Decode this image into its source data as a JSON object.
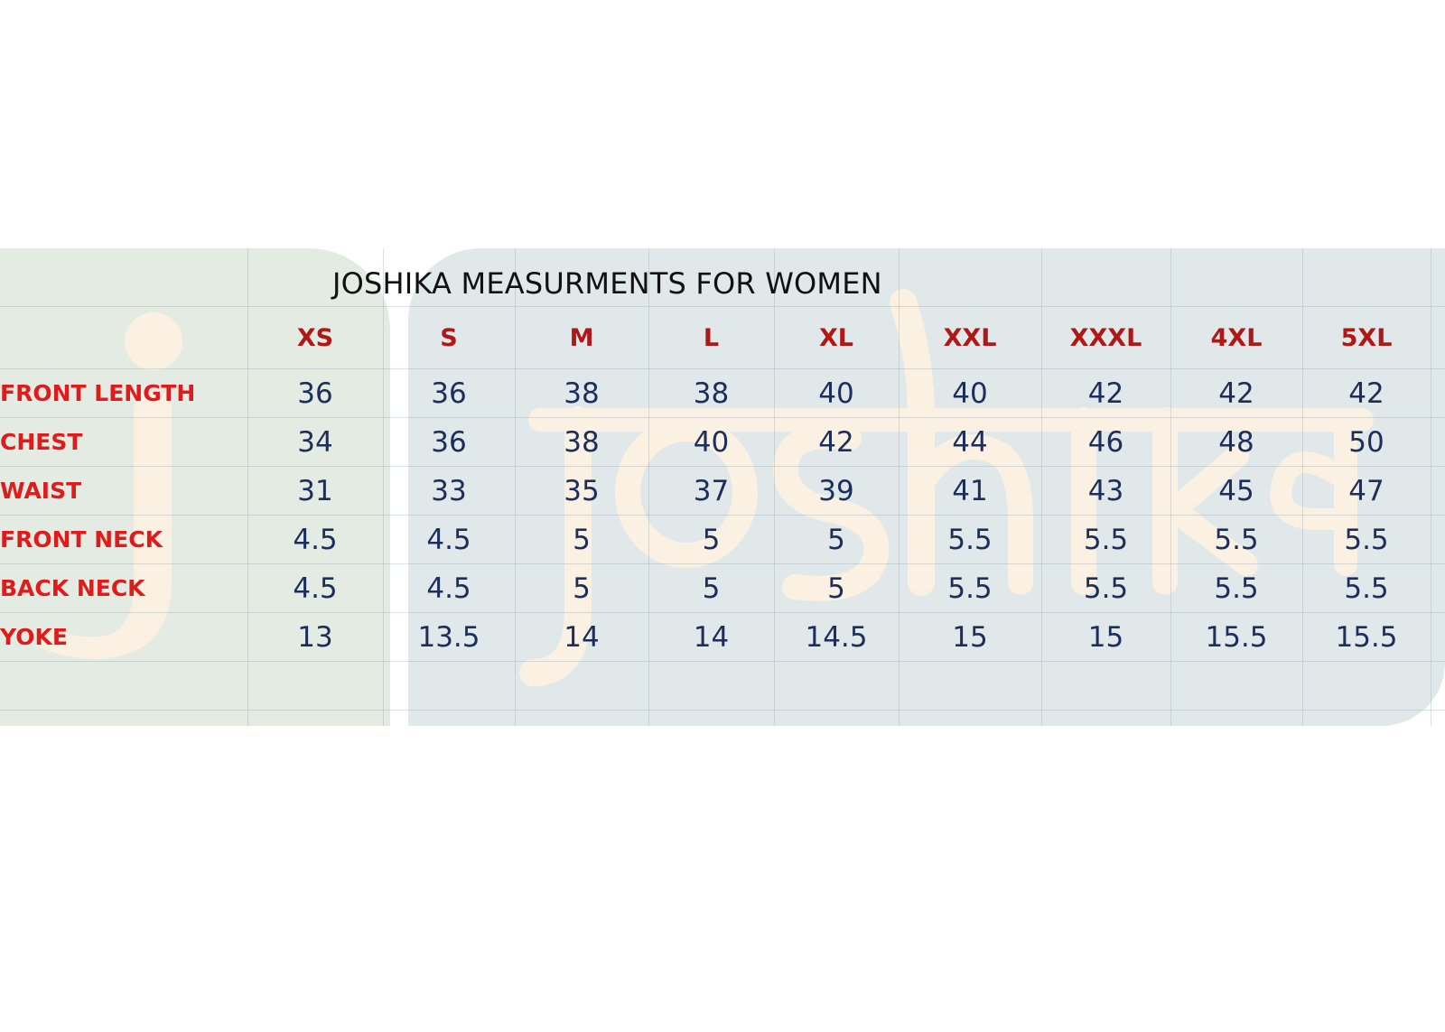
{
  "title": "JOSHIKA MEASURMENTS FOR WOMEN",
  "watermark_text": "joshika",
  "colors": {
    "title": "#111111",
    "size_header": "#b01818",
    "row_label": "#e01b1b",
    "value": "#1c2e5c",
    "panel_left": "#e3ebe3",
    "panel_right": "#e1e8ea",
    "watermark": "#fbf1e2"
  },
  "sizes": [
    "XS",
    "S",
    "M",
    "L",
    "XL",
    "XXL",
    "XXXL",
    "4XL",
    "5XL"
  ],
  "rows": [
    {
      "label": "FRONT LENGTH",
      "values": [
        "36",
        "36",
        "38",
        "38",
        "40",
        "40",
        "42",
        "42",
        "42"
      ]
    },
    {
      "label": "CHEST",
      "values": [
        "34",
        "36",
        "38",
        "40",
        "42",
        "44",
        "46",
        "48",
        "50"
      ]
    },
    {
      "label": "WAIST",
      "values": [
        "31",
        "33",
        "35",
        "37",
        "39",
        "41",
        "43",
        "45",
        "47"
      ]
    },
    {
      "label": "FRONT NECK",
      "values": [
        "4.5",
        "4.5",
        "5",
        "5",
        "5",
        "5.5",
        "5.5",
        "5.5",
        "5.5"
      ]
    },
    {
      "label": "BACK NECK",
      "values": [
        "4.5",
        "4.5",
        "5",
        "5",
        "5",
        "5.5",
        "5.5",
        "5.5",
        "5.5"
      ]
    },
    {
      "label": "YOKE",
      "values": [
        "13",
        "13.5",
        "14",
        "14",
        "14.5",
        "15",
        "15",
        "15.5",
        "15.5"
      ]
    }
  ]
}
